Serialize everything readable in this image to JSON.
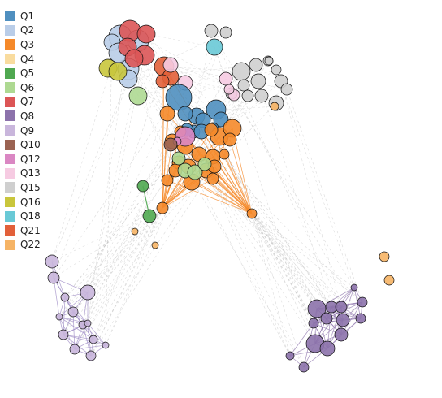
{
  "legend": [
    {
      "label": "Q1",
      "color": "#4f8fbf"
    },
    {
      "label": "Q2",
      "color": "#b9cde8"
    },
    {
      "label": "Q3",
      "color": "#f5892a"
    },
    {
      "label": "Q4",
      "color": "#f9dc9f"
    },
    {
      "label": "Q5",
      "color": "#4fa850"
    },
    {
      "label": "Q6",
      "color": "#aed992"
    },
    {
      "label": "Q7",
      "color": "#dc5556"
    },
    {
      "label": "Q8",
      "color": "#8c72ab"
    },
    {
      "label": "Q9",
      "color": "#c9b6dc"
    },
    {
      "label": "Q10",
      "color": "#9b6352"
    },
    {
      "label": "Q12",
      "color": "#da87c3"
    },
    {
      "label": "Q13",
      "color": "#f6cbe2"
    },
    {
      "label": "Q15",
      "color": "#cfcfcf"
    },
    {
      "label": "Q16",
      "color": "#c9c63c"
    },
    {
      "label": "Q18",
      "color": "#69c9d6"
    },
    {
      "label": "Q21",
      "color": "#e2603a"
    },
    {
      "label": "Q22",
      "color": "#f6b465"
    }
  ]
}
